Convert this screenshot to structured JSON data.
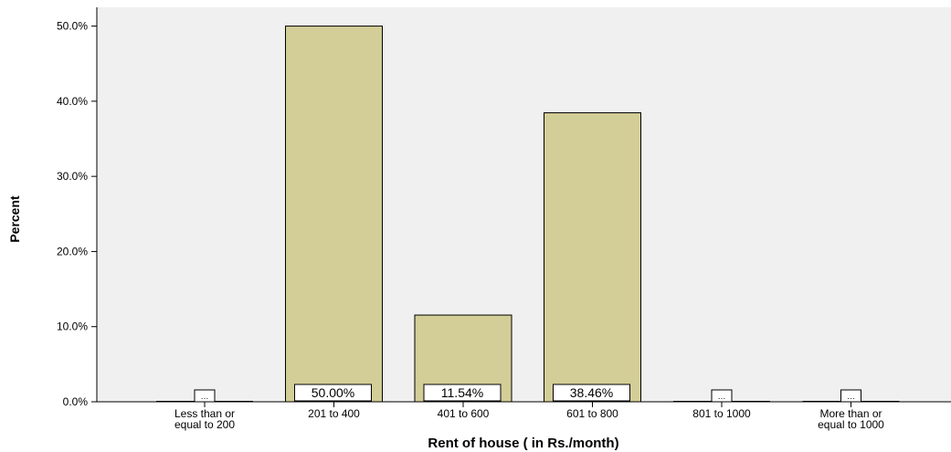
{
  "chart_data": {
    "type": "bar",
    "title": "",
    "xlabel": "Rent of house ( in Rs./month)",
    "ylabel": "Percent",
    "ylim": [
      0,
      52.5
    ],
    "yticks": [
      0,
      10,
      20,
      30,
      40,
      50
    ],
    "ytick_labels": [
      "0.0%",
      "10.0%",
      "20.0%",
      "30.0%",
      "40.0%",
      "50.0%"
    ],
    "grid": false,
    "background_color": "#f0f0f0",
    "bar_color": "#d3cd98",
    "categories": [
      [
        "Less than or",
        "equal to 200"
      ],
      [
        "201 to 400"
      ],
      [
        "401 to 600"
      ],
      [
        "601 to 800"
      ],
      [
        "801 to 1000"
      ],
      [
        "More than or",
        "equal to 1000"
      ]
    ],
    "values": [
      0,
      50.0,
      11.54,
      38.46,
      0,
      0
    ],
    "data_labels": [
      "…",
      "50.00%",
      "11.54%",
      "38.46%",
      "…",
      "…"
    ]
  }
}
